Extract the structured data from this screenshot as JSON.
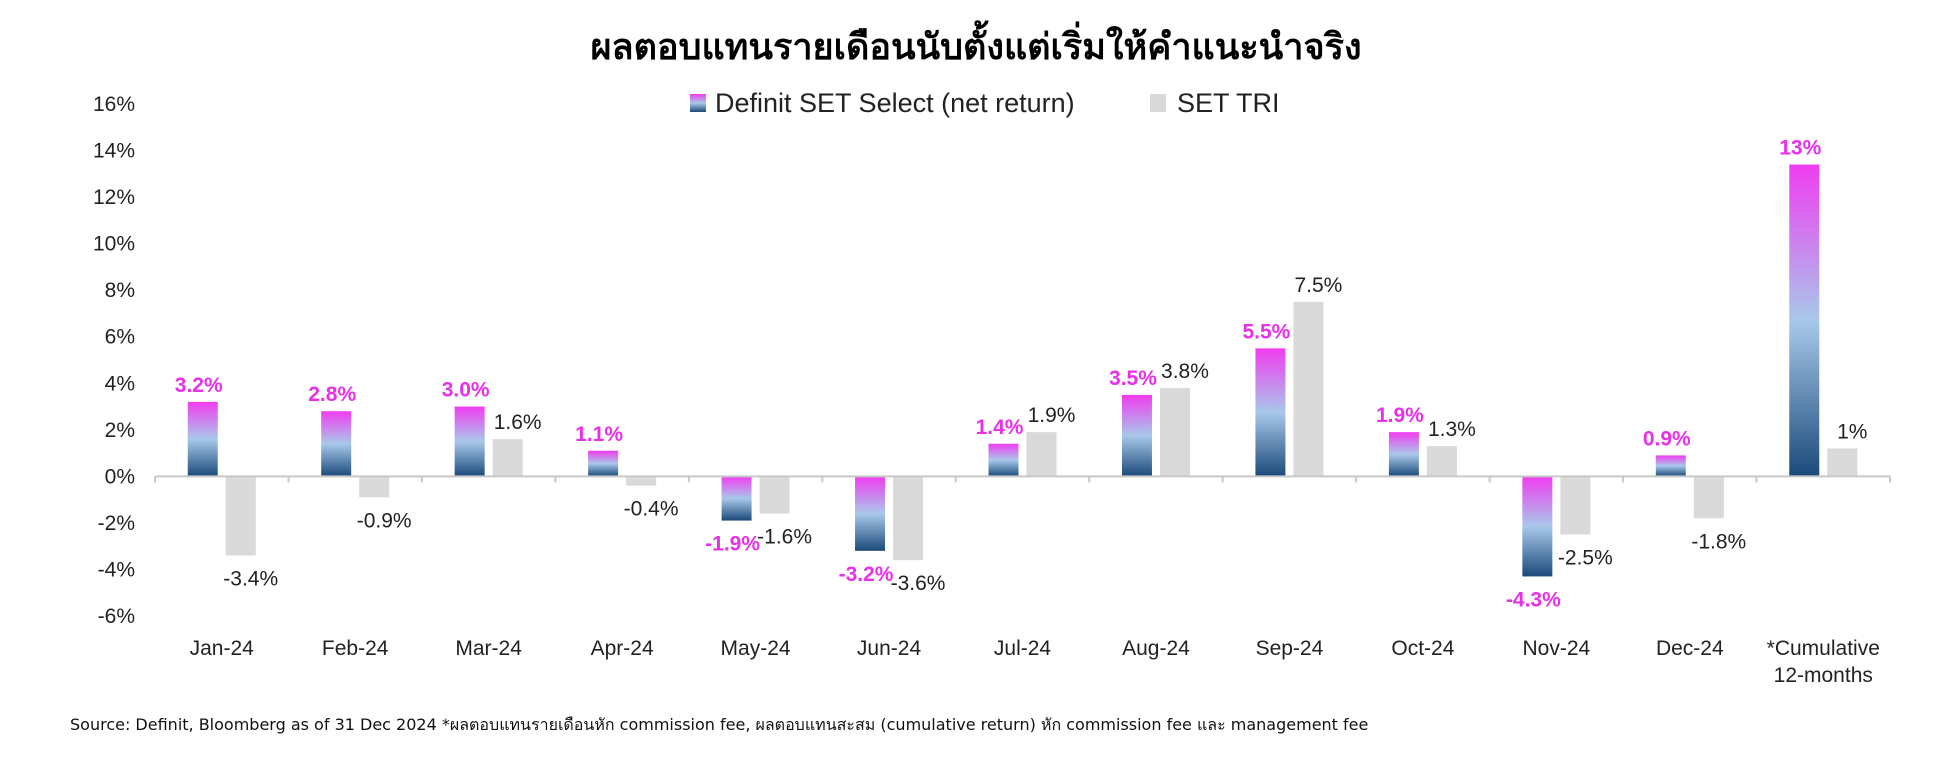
{
  "title": "ผลตอบแทนรายเดือนนับตั้งแต่เริ่มให้คำแนะนำจริง",
  "source": "Source: Definit, Bloomberg as of 31 Dec 2024 *ผลตอบแทนรายเดือนหัก commission fee, ผลตอบแทนสะสม (cumulative return) หัก commission fee และ management fee",
  "colors": {
    "series_a_gradient": [
      "#f03cf0",
      "#a8c8ea",
      "#1a4a7a"
    ],
    "series_a_label": "#e830e8",
    "series_b": "#d9d9d9",
    "axis": "#c8c8c8"
  },
  "chart_data": {
    "type": "bar",
    "title": "ผลตอบแทนรายเดือนนับตั้งแต่เริ่มให้คำแนะนำจริง",
    "categories": [
      "Jan-24",
      "Feb-24",
      "Mar-24",
      "Apr-24",
      "May-24",
      "Jun-24",
      "Jul-24",
      "Aug-24",
      "Sep-24",
      "Oct-24",
      "Nov-24",
      "Dec-24",
      "*Cumulative\n12-months"
    ],
    "series": [
      {
        "name": "Definit SET Select (net return)",
        "values": [
          3.2,
          2.8,
          3.0,
          1.1,
          -1.9,
          -3.2,
          1.4,
          3.5,
          5.5,
          1.9,
          -4.3,
          0.9,
          13.4
        ],
        "labels": [
          "3.2%",
          "2.8%",
          "3.0%",
          "1.1%",
          "-1.9%",
          "-3.2%",
          "1.4%",
          "3.5%",
          "5.5%",
          "1.9%",
          "-4.3%",
          "0.9%",
          "13%"
        ]
      },
      {
        "name": "SET TRI",
        "values": [
          -3.4,
          -0.9,
          1.6,
          -0.4,
          -1.6,
          -3.6,
          1.9,
          3.8,
          7.5,
          1.3,
          -2.5,
          -1.8,
          1.2
        ],
        "labels": [
          "-3.4%",
          "-0.9%",
          "1.6%",
          "-0.4%",
          "-1.6%",
          "-3.6%",
          "1.9%",
          "3.8%",
          "7.5%",
          "1.3%",
          "-2.5%",
          "-1.8%",
          "1%"
        ]
      }
    ],
    "yticks": [
      "16%",
      "14%",
      "12%",
      "10%",
      "8%",
      "6%",
      "4%",
      "2%",
      "0%",
      "-2%",
      "-4%",
      "-6%"
    ],
    "ylim": [
      -6,
      16
    ],
    "grid": false,
    "legend": "top"
  }
}
